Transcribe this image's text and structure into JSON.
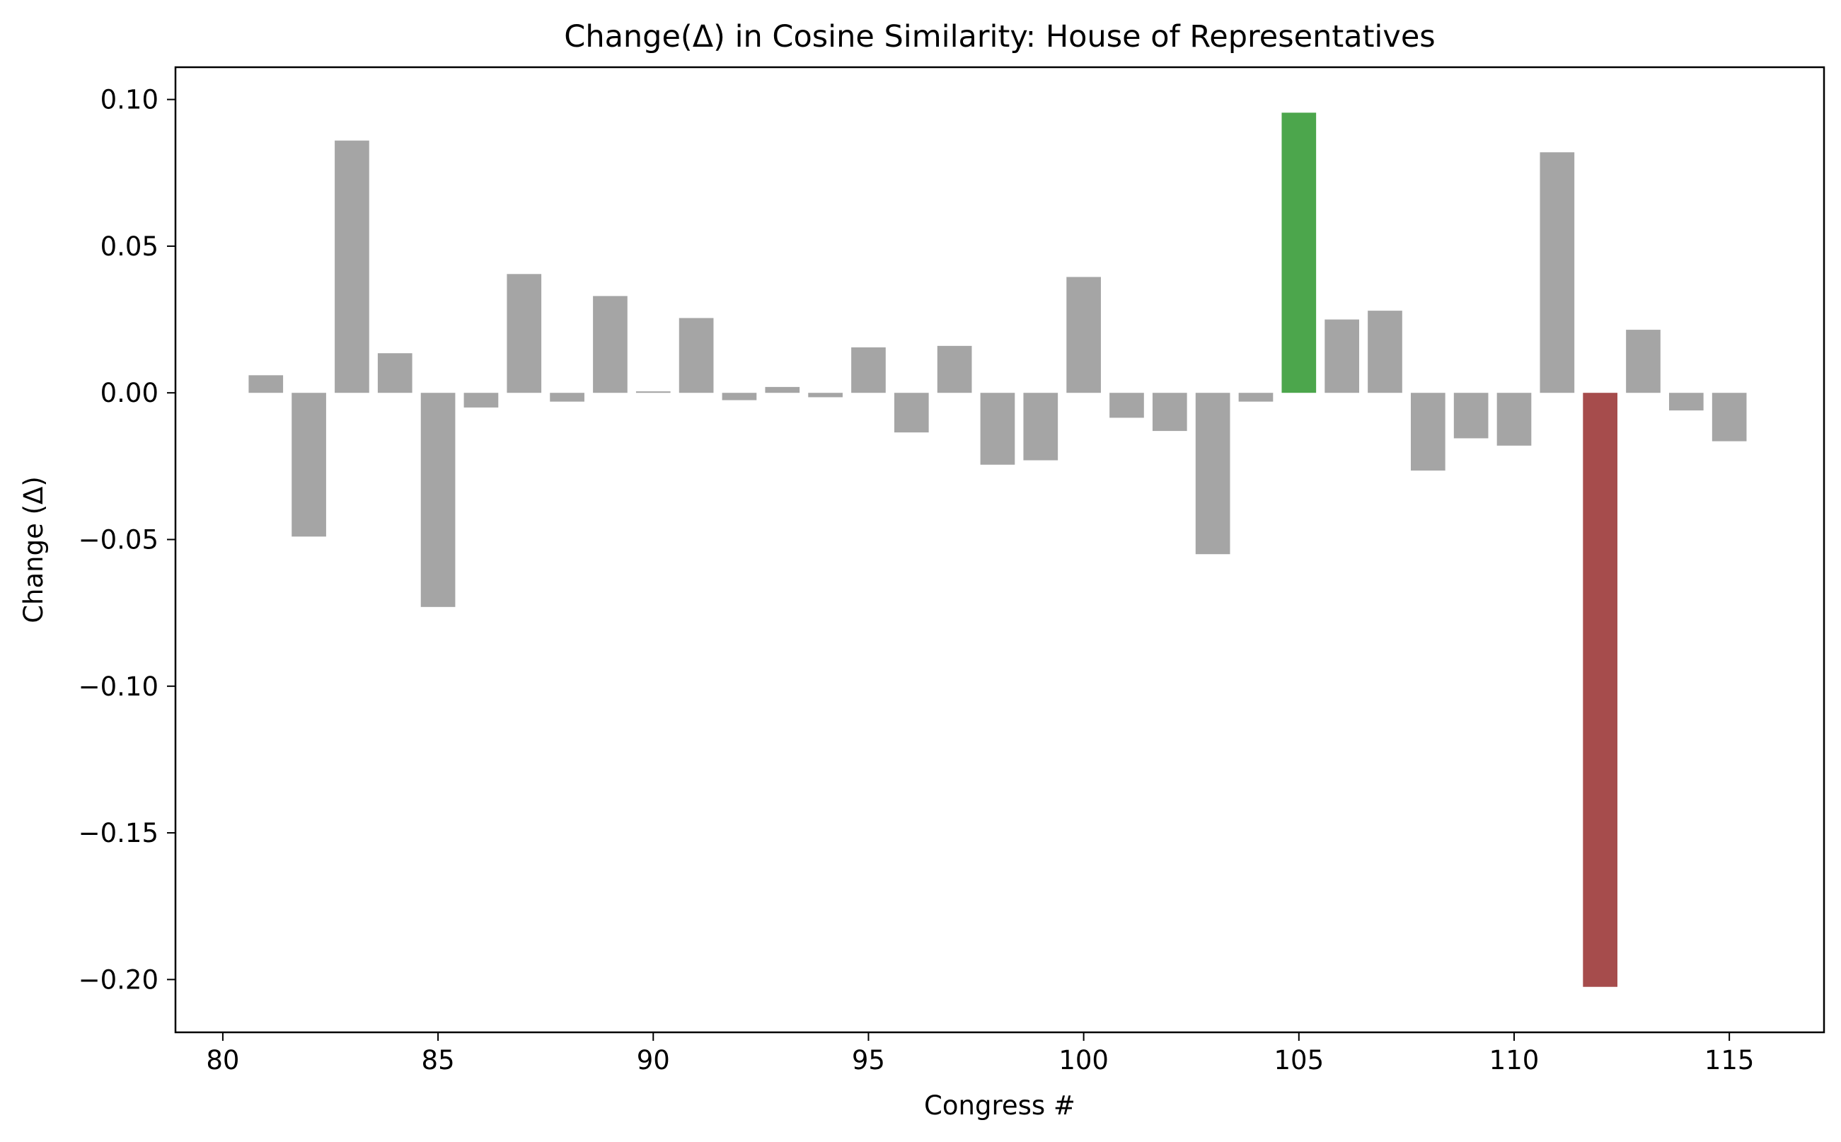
{
  "chart_data": {
    "type": "bar",
    "title": "Change(Δ) in Cosine Similarity: House of Representatives",
    "xlabel": "Congress #",
    "ylabel": "Change (Δ)",
    "xlim": [
      78.9,
      117.2
    ],
    "ylim": [
      -0.218,
      0.111
    ],
    "x_ticks": [
      {
        "value": 80,
        "label": "80"
      },
      {
        "value": 85,
        "label": "85"
      },
      {
        "value": 90,
        "label": "90"
      },
      {
        "value": 95,
        "label": "95"
      },
      {
        "value": 100,
        "label": "100"
      },
      {
        "value": 105,
        "label": "105"
      },
      {
        "value": 110,
        "label": "110"
      },
      {
        "value": 115,
        "label": "115"
      }
    ],
    "y_ticks": [
      {
        "value": 0.1,
        "label": "0.10"
      },
      {
        "value": 0.05,
        "label": "0.05"
      },
      {
        "value": 0.0,
        "label": "0.00"
      },
      {
        "value": -0.05,
        "label": "−0.05"
      },
      {
        "value": -0.1,
        "label": "−0.10"
      },
      {
        "value": -0.15,
        "label": "−0.15"
      },
      {
        "value": -0.2,
        "label": "−0.20"
      }
    ],
    "grid": false,
    "legend": "none",
    "colors": {
      "default": "#a5a5a5",
      "highlight_positive": "#4ca64c",
      "highlight_negative": "#a64c4c"
    },
    "categories": [
      81,
      82,
      83,
      84,
      85,
      86,
      87,
      88,
      89,
      90,
      91,
      92,
      93,
      94,
      95,
      96,
      97,
      98,
      99,
      100,
      101,
      102,
      103,
      104,
      105,
      106,
      107,
      108,
      109,
      110,
      111,
      112,
      113,
      114,
      115
    ],
    "values": [
      0.006,
      -0.049,
      0.086,
      0.0135,
      -0.073,
      -0.005,
      0.0405,
      -0.003,
      0.033,
      0.0005,
      0.0255,
      -0.0025,
      0.002,
      -0.0015,
      0.0155,
      -0.0135,
      0.016,
      -0.0245,
      -0.023,
      0.0395,
      -0.0085,
      -0.013,
      -0.055,
      -0.003,
      0.0955,
      0.025,
      0.028,
      -0.0265,
      -0.0155,
      -0.018,
      0.082,
      -0.2025,
      0.0215,
      -0.006,
      -0.0165
    ],
    "bar_colors": [
      "default",
      "default",
      "default",
      "default",
      "default",
      "default",
      "default",
      "default",
      "default",
      "default",
      "default",
      "default",
      "default",
      "default",
      "default",
      "default",
      "default",
      "default",
      "default",
      "default",
      "default",
      "default",
      "default",
      "default",
      "highlight_positive",
      "default",
      "default",
      "default",
      "default",
      "default",
      "default",
      "highlight_negative",
      "default",
      "default",
      "default"
    ],
    "bar_width": 0.8
  }
}
